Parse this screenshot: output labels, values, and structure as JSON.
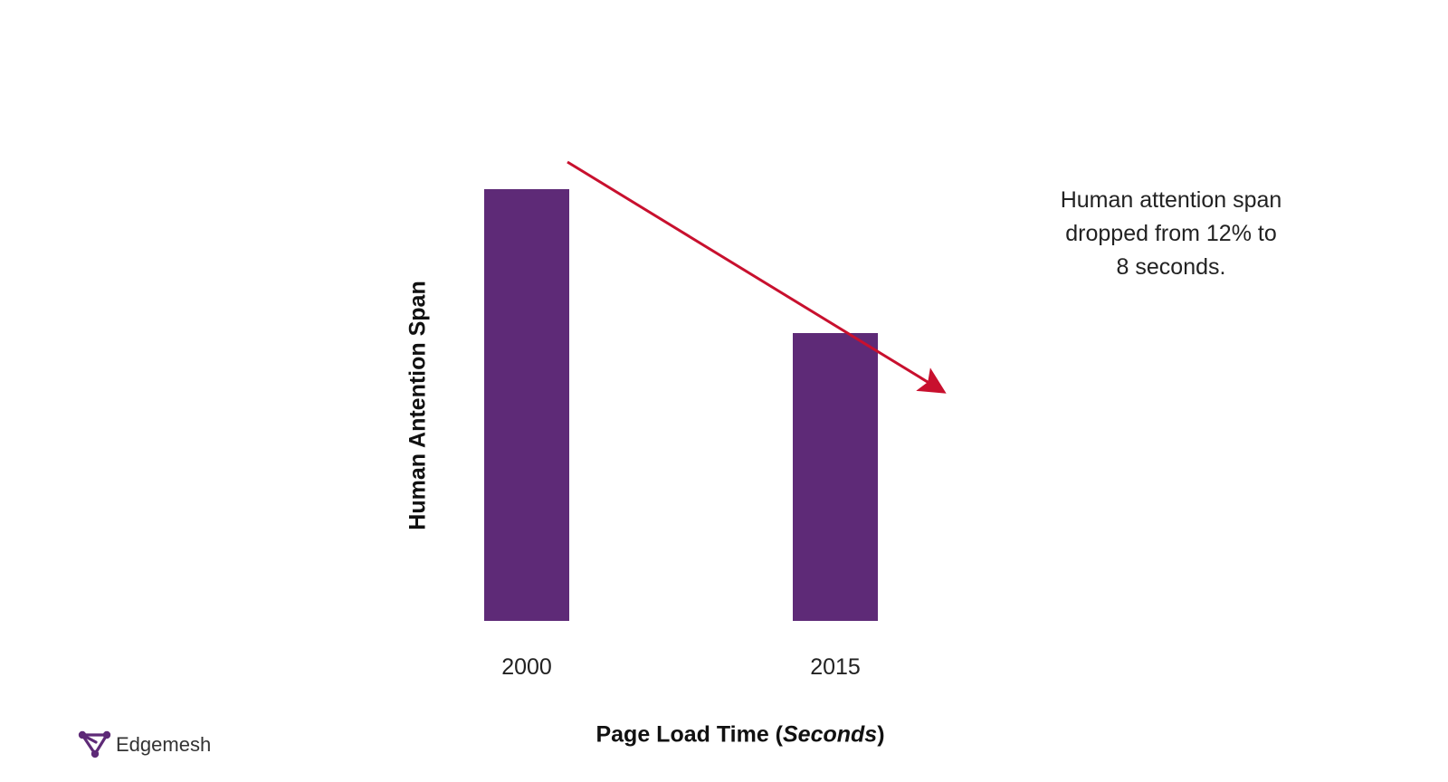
{
  "chart_data": {
    "type": "bar",
    "categories": [
      "2000",
      "2015"
    ],
    "values": [
      12,
      8
    ],
    "xlabel_main": "Page Load Time (",
    "xlabel_italic": "Seconds",
    "xlabel_end": ")",
    "ylabel": "Human Antention Span",
    "ylim": [
      0,
      12
    ],
    "grid": false,
    "legend": "none",
    "bar_color": "#5e2a77",
    "trend_arrow": {
      "color": "#c8102e",
      "direction": "down"
    }
  },
  "annotation": {
    "lines": [
      "Human attention span",
      "dropped from 12% to",
      "8 seconds."
    ]
  },
  "logo": {
    "text": "Edgemesh",
    "icon": "edgemesh-logo-icon",
    "color": "#5e2a77"
  }
}
